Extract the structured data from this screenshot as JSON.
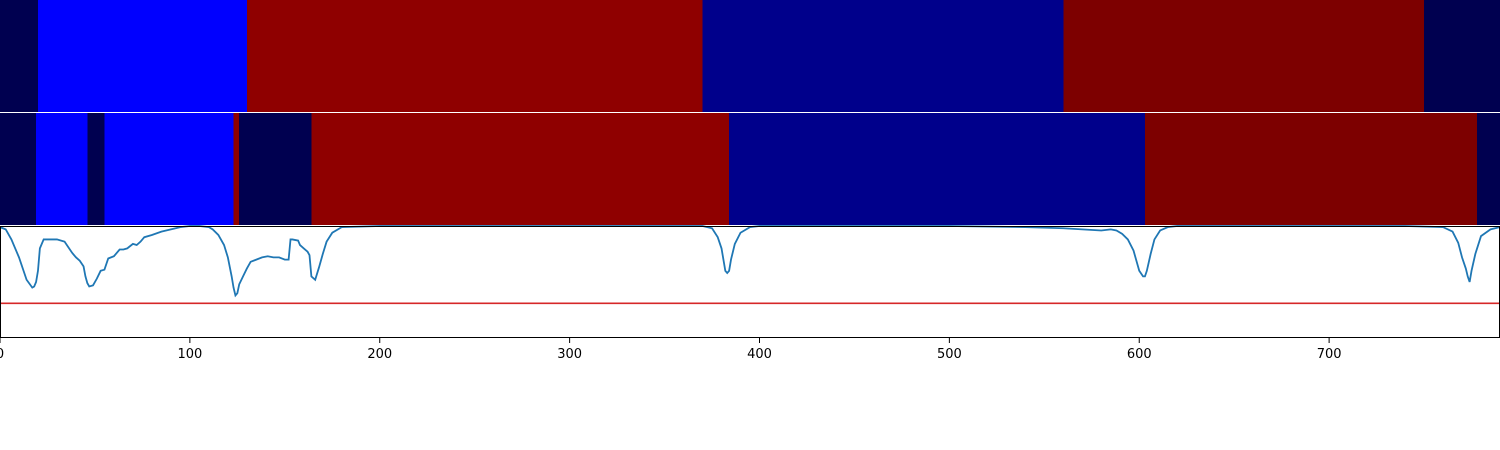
{
  "chart_data": [
    {
      "type": "heatmap",
      "row": "top",
      "segments": [
        {
          "start": 0,
          "end": 20,
          "color": "#000050"
        },
        {
          "start": 20,
          "end": 130,
          "color": "#0000ff"
        },
        {
          "start": 130,
          "end": 370,
          "color": "#8f0000"
        },
        {
          "start": 370,
          "end": 560,
          "color": "#00008b"
        },
        {
          "start": 560,
          "end": 750,
          "color": "#7d0000"
        },
        {
          "start": 750,
          "end": 790,
          "color": "#000050"
        }
      ]
    },
    {
      "type": "heatmap",
      "row": "middle",
      "segments": [
        {
          "start": 0,
          "end": 19,
          "color": "#000050"
        },
        {
          "start": 19,
          "end": 46,
          "color": "#0000ff"
        },
        {
          "start": 46,
          "end": 55,
          "color": "#000050"
        },
        {
          "start": 55,
          "end": 123,
          "color": "#0000ff"
        },
        {
          "start": 123,
          "end": 126,
          "color": "#8f0000"
        },
        {
          "start": 126,
          "end": 164,
          "color": "#000050"
        },
        {
          "start": 164,
          "end": 384,
          "color": "#8f0000"
        },
        {
          "start": 384,
          "end": 603,
          "color": "#00008b"
        },
        {
          "start": 603,
          "end": 778,
          "color": "#7d0000"
        },
        {
          "start": 778,
          "end": 790,
          "color": "#000050"
        }
      ]
    },
    {
      "type": "line",
      "row": "bottom",
      "xlim": [
        0,
        790
      ],
      "ylim": [
        0,
        1
      ],
      "grid": false,
      "xticks": [
        0,
        100,
        200,
        300,
        400,
        500,
        600,
        700
      ],
      "series": [
        {
          "color": "#1f77b4",
          "x": [
            0,
            3,
            6,
            10,
            14,
            17,
            18,
            19,
            20,
            21,
            23,
            25,
            30,
            34,
            36,
            38,
            40,
            42,
            44,
            45,
            46,
            47,
            49,
            51,
            53,
            55,
            57,
            60,
            63,
            65,
            67,
            70,
            72,
            74,
            76,
            80,
            85,
            90,
            95,
            100,
            105,
            110,
            112,
            115,
            118,
            120,
            122,
            123,
            124,
            125,
            126,
            128,
            130,
            132,
            135,
            138,
            141,
            144,
            147,
            150,
            152,
            153,
            154,
            157,
            158,
            160,
            162,
            163,
            164,
            166,
            168,
            170,
            172,
            175,
            180,
            200,
            250,
            300,
            350,
            370,
            375,
            378,
            380,
            382,
            383,
            384,
            385,
            387,
            390,
            395,
            400,
            450,
            500,
            540,
            560,
            570,
            580,
            585,
            588,
            591,
            594,
            597,
            600,
            602,
            603,
            604,
            606,
            608,
            611,
            615,
            620,
            650,
            700,
            740,
            760,
            765,
            768,
            770,
            772,
            773,
            774,
            775,
            777,
            780,
            785,
            790
          ],
          "y": [
            0.99,
            0.97,
            0.88,
            0.72,
            0.52,
            0.45,
            0.46,
            0.5,
            0.6,
            0.8,
            0.88,
            0.88,
            0.88,
            0.86,
            0.81,
            0.76,
            0.72,
            0.69,
            0.64,
            0.55,
            0.49,
            0.46,
            0.47,
            0.53,
            0.6,
            0.61,
            0.71,
            0.73,
            0.79,
            0.79,
            0.8,
            0.84,
            0.83,
            0.86,
            0.9,
            0.92,
            0.95,
            0.97,
            0.99,
            1.0,
            1.0,
            0.99,
            0.97,
            0.92,
            0.83,
            0.72,
            0.55,
            0.45,
            0.38,
            0.4,
            0.48,
            0.55,
            0.62,
            0.68,
            0.7,
            0.72,
            0.73,
            0.72,
            0.72,
            0.7,
            0.7,
            0.88,
            0.88,
            0.87,
            0.83,
            0.8,
            0.77,
            0.74,
            0.55,
            0.52,
            0.63,
            0.75,
            0.86,
            0.94,
            0.99,
            1.0,
            1.0,
            1.0,
            1.0,
            1.0,
            0.98,
            0.9,
            0.8,
            0.6,
            0.58,
            0.6,
            0.7,
            0.84,
            0.94,
            0.99,
            1.0,
            1.0,
            1.0,
            0.99,
            0.98,
            0.97,
            0.96,
            0.97,
            0.96,
            0.93,
            0.88,
            0.78,
            0.6,
            0.55,
            0.55,
            0.6,
            0.75,
            0.88,
            0.96,
            0.99,
            1.0,
            1.0,
            1.0,
            1.0,
            0.99,
            0.95,
            0.85,
            0.72,
            0.62,
            0.55,
            0.5,
            0.6,
            0.75,
            0.91,
            0.97,
            0.99
          ]
        }
      ],
      "hline": {
        "y": 0.31,
        "color": "#d62728"
      }
    }
  ]
}
